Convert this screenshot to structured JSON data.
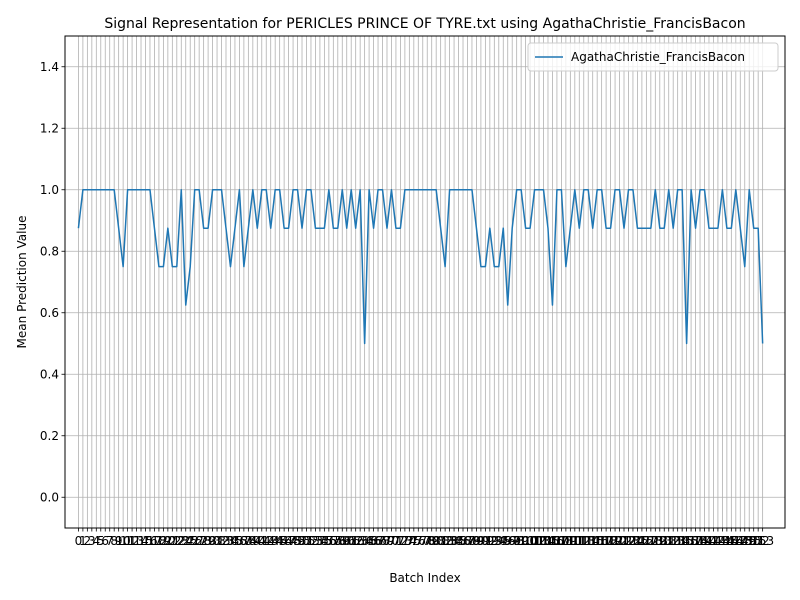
{
  "chart_data": {
    "type": "line",
    "title": "Signal Representation for PERICLES PRINCE OF TYRE.txt using AgathaChristie_FrancisBacon",
    "xlabel": "Batch Index",
    "ylabel": "Mean Prediction Value",
    "xlim": [
      -3,
      158
    ],
    "ylim": [
      -0.1,
      1.5
    ],
    "yticks": [
      0.0,
      0.2,
      0.4,
      0.6,
      0.8,
      1.0,
      1.2,
      1.4
    ],
    "ytick_labels": [
      "0.0",
      "0.2",
      "0.4",
      "0.6",
      "0.8",
      "1.0",
      "1.2",
      "1.4"
    ],
    "grid": true,
    "legend": "upper right",
    "colors": {
      "series": "#1f77b4",
      "grid": "#b0b0b0"
    },
    "series": [
      {
        "name": "AgathaChristie_FrancisBacon",
        "x": [
          0,
          1,
          2,
          3,
          4,
          5,
          6,
          7,
          8,
          9,
          10,
          11,
          12,
          13,
          14,
          15,
          16,
          17,
          18,
          19,
          20,
          21,
          22,
          23,
          24,
          25,
          26,
          27,
          28,
          29,
          30,
          31,
          32,
          33,
          34,
          35,
          36,
          37,
          38,
          39,
          40,
          41,
          42,
          43,
          44,
          45,
          46,
          47,
          48,
          49,
          50,
          51,
          52,
          53,
          54,
          55,
          56,
          57,
          58,
          59,
          60,
          61,
          62,
          63,
          64,
          65,
          66,
          67,
          68,
          69,
          70,
          71,
          72,
          73,
          74,
          75,
          76,
          77,
          78,
          79,
          80,
          81,
          82,
          83,
          84,
          85,
          86,
          87,
          88,
          89,
          90,
          91,
          92,
          93,
          94,
          95,
          96,
          97,
          98,
          99,
          100,
          101,
          102,
          103,
          104,
          105,
          106,
          107,
          108,
          109,
          110,
          111,
          112,
          113,
          114,
          115,
          116,
          117,
          118,
          119,
          120,
          121,
          122,
          123,
          124,
          125,
          126,
          127,
          128,
          129,
          130,
          131,
          132,
          133,
          134,
          135,
          136,
          137,
          138,
          139,
          140,
          141,
          142,
          143,
          144,
          145,
          146,
          147,
          148,
          149,
          150,
          151,
          152,
          153
        ],
        "values": [
          0.875,
          1.0,
          1.0,
          1.0,
          1.0,
          1.0,
          1.0,
          1.0,
          1.0,
          0.875,
          0.75,
          1.0,
          1.0,
          1.0,
          1.0,
          1.0,
          1.0,
          0.875,
          0.75,
          0.75,
          0.875,
          0.75,
          0.75,
          1.0,
          0.625,
          0.75,
          1.0,
          1.0,
          0.875,
          0.875,
          1.0,
          1.0,
          1.0,
          0.875,
          0.75,
          0.875,
          1.0,
          0.75,
          0.875,
          1.0,
          0.875,
          1.0,
          1.0,
          0.875,
          1.0,
          1.0,
          0.875,
          0.875,
          1.0,
          1.0,
          0.875,
          1.0,
          1.0,
          0.875,
          0.875,
          0.875,
          1.0,
          0.875,
          0.875,
          1.0,
          0.875,
          1.0,
          0.875,
          1.0,
          0.5,
          1.0,
          0.875,
          1.0,
          1.0,
          0.875,
          1.0,
          0.875,
          0.875,
          1.0,
          1.0,
          1.0,
          1.0,
          1.0,
          1.0,
          1.0,
          1.0,
          0.875,
          0.75,
          1.0,
          1.0,
          1.0,
          1.0,
          1.0,
          1.0,
          0.875,
          0.75,
          0.75,
          0.875,
          0.75,
          0.75,
          0.875,
          0.625,
          0.875,
          1.0,
          1.0,
          0.875,
          0.875,
          1.0,
          1.0,
          1.0,
          0.875,
          0.625,
          1.0,
          1.0,
          0.75,
          0.875,
          1.0,
          0.875,
          1.0,
          1.0,
          0.875,
          1.0,
          1.0,
          0.875,
          0.875,
          1.0,
          1.0,
          0.875,
          1.0,
          1.0,
          0.875,
          0.875,
          0.875,
          0.875,
          1.0,
          0.875,
          0.875,
          1.0,
          0.875,
          1.0,
          1.0,
          0.5,
          1.0,
          0.875,
          1.0,
          1.0,
          0.875,
          0.875,
          0.875,
          1.0,
          0.875,
          0.875,
          1.0,
          0.875,
          0.75,
          1.0,
          0.875,
          0.875,
          0.5
        ]
      }
    ]
  }
}
